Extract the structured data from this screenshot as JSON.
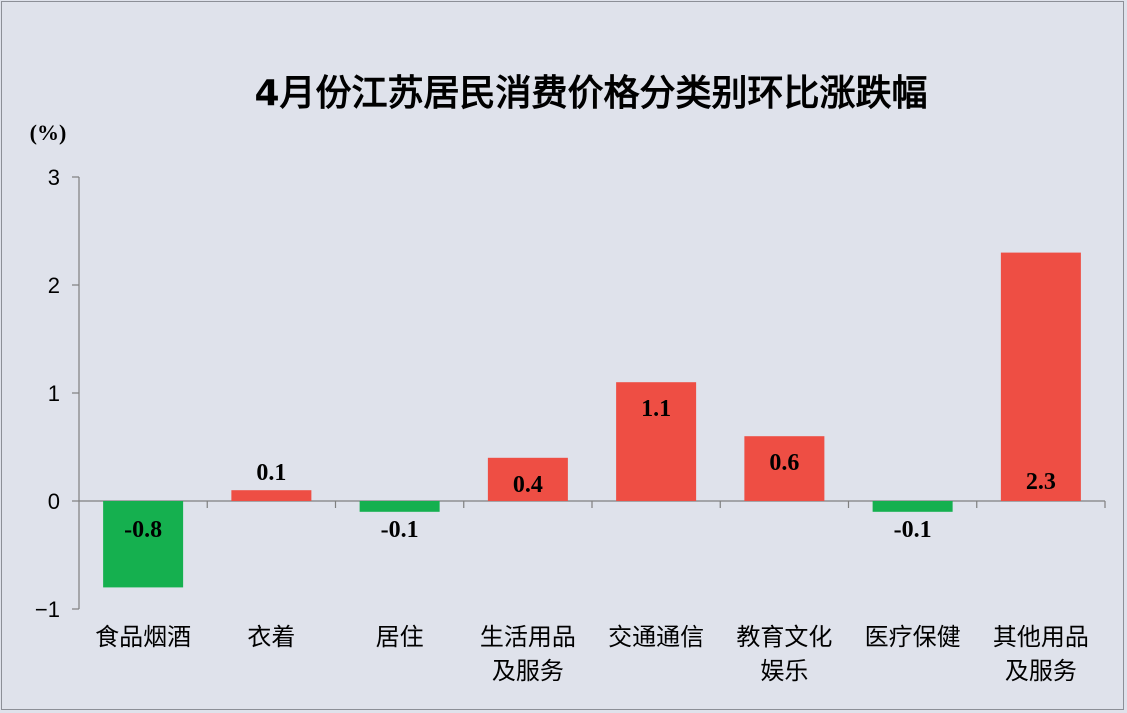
{
  "chart_data": {
    "type": "bar",
    "title": "4月份江苏居民消费价格分类别环比涨跌幅",
    "unit": "(%)",
    "categories": [
      [
        "食品烟酒"
      ],
      [
        "衣着"
      ],
      [
        "居住"
      ],
      [
        "生活用品",
        "及服务"
      ],
      [
        "交通通信"
      ],
      [
        "教育文化",
        "娱乐"
      ],
      [
        "医疗保健"
      ],
      [
        "其他用品",
        "及服务"
      ]
    ],
    "values": [
      -0.8,
      0.1,
      -0.1,
      0.4,
      1.1,
      0.6,
      -0.1,
      2.3
    ],
    "data_labels": [
      "-0.8",
      "0.1",
      "-0.1",
      "0.4",
      "1.1",
      "0.6",
      "-0.1",
      "2.3"
    ],
    "ylim": [
      -1,
      3
    ],
    "yticks": [
      3,
      2,
      1,
      0,
      -1
    ],
    "ytick_labels": [
      "3",
      "2",
      "1",
      "0",
      "−1"
    ],
    "grid": false,
    "legend": "none",
    "colors": {
      "positive": "#ee4e44",
      "negative": "#15b04f",
      "background": "#dfe2eb",
      "axis": "#7f7f7f"
    }
  }
}
